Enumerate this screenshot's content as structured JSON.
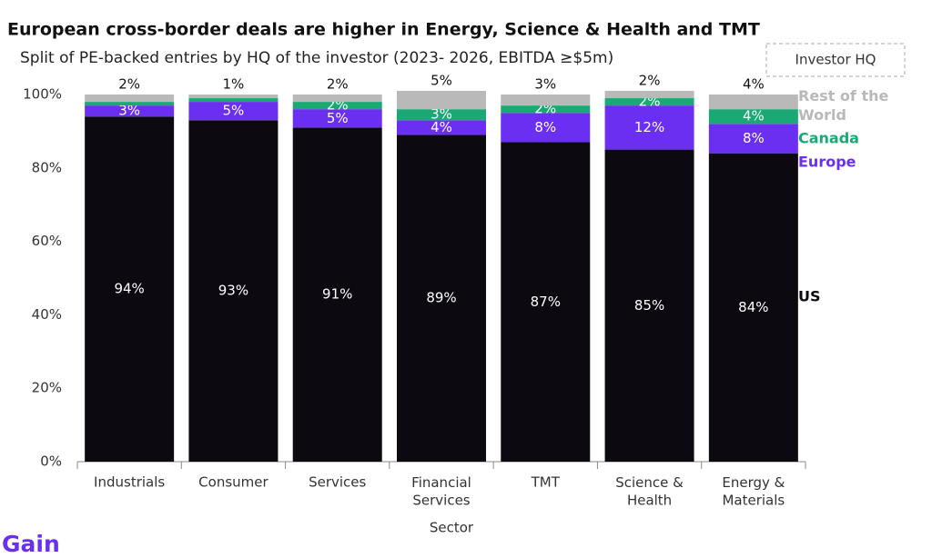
{
  "chart_data": {
    "type": "stacked_bar",
    "title": "European cross-border deals are higher in Energy, Science & Health and TMT",
    "subtitle": "Split of PE-backed entries by HQ of the investor (2023- 2026, EBITDA ≥$5m)",
    "legend_title": "Investor HQ",
    "x_label": "Sector",
    "logo": "Gain",
    "categories": [
      "Industrials",
      "Consumer",
      "Services",
      "Financial\nServices",
      "TMT",
      "Science &\nHealth",
      "Energy &\nMaterials"
    ],
    "series": [
      {
        "name": "US",
        "color": "#0c0a10",
        "values": [
          94,
          93,
          91,
          89,
          87,
          85,
          84
        ],
        "value_labels": [
          "94%",
          "93%",
          "91%",
          "89%",
          "87%",
          "85%",
          "84%"
        ]
      },
      {
        "name": "Europe",
        "color": "#6a2ff0",
        "values": [
          3,
          5,
          5,
          4,
          8,
          12,
          8
        ],
        "value_labels": [
          "3%",
          "5%",
          "5%",
          "4%",
          "8%",
          "12%",
          "8%"
        ]
      },
      {
        "name": "Canada",
        "color": "#1aa874",
        "values": [
          1,
          1,
          2,
          3,
          2,
          2,
          4
        ],
        "value_labels": [
          null,
          null,
          "2%",
          "3%",
          "2%",
          "2%",
          "4%"
        ]
      },
      {
        "name": "Rest of the\nWorld",
        "color": "#b9b9b9",
        "values": [
          2,
          1,
          2,
          5,
          3,
          2,
          4
        ],
        "value_labels": [
          "2%",
          "1%",
          "2%",
          "5%",
          "3%",
          "2%",
          "4%"
        ]
      }
    ],
    "ylim": [
      0,
      100
    ],
    "yticks": [
      {
        "value": 0,
        "label": "0%"
      },
      {
        "value": 20,
        "label": "20%"
      },
      {
        "value": 40,
        "label": "40%"
      },
      {
        "value": 60,
        "label": "60%"
      },
      {
        "value": 80,
        "label": "80%"
      },
      {
        "value": 100,
        "label": "100%"
      }
    ]
  }
}
